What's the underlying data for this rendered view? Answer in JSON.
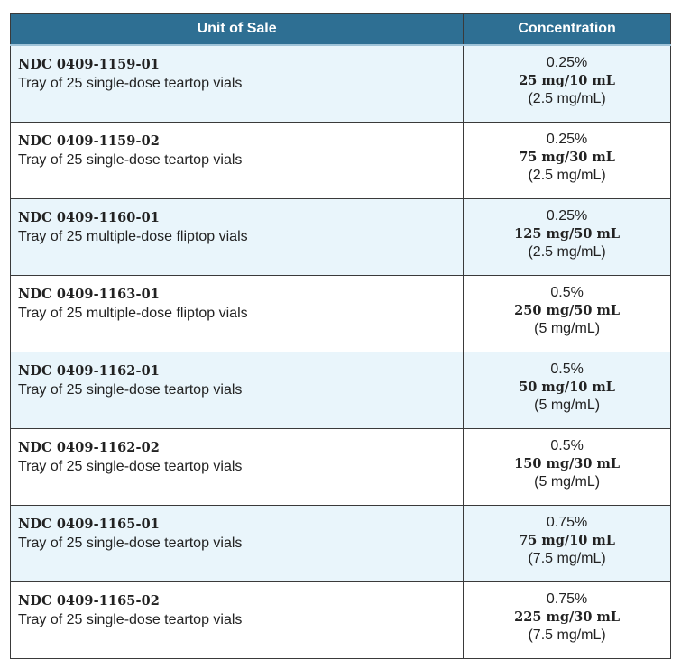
{
  "table": {
    "headers": {
      "unit_of_sale": "Unit of Sale",
      "concentration": "Concentration"
    },
    "rows": [
      {
        "ndc": "NDC 0409-1159-01",
        "description": "Tray of 25 single-dose teartop vials",
        "percent": "0.25%",
        "amount": "25 mg/10 mL",
        "per_ml": "(2.5 mg/mL)"
      },
      {
        "ndc": "NDC 0409-1159-02",
        "description": "Tray of 25 single-dose teartop vials",
        "percent": "0.25%",
        "amount": "75 mg/30 mL",
        "per_ml": "(2.5 mg/mL)"
      },
      {
        "ndc": "NDC 0409-1160-01",
        "description": "Tray of 25 multiple-dose fliptop vials",
        "percent": "0.25%",
        "amount": "125 mg/50 mL",
        "per_ml": "(2.5 mg/mL)"
      },
      {
        "ndc": "NDC 0409-1163-01",
        "description": "Tray of 25 multiple-dose fliptop vials",
        "percent": "0.5%",
        "amount": "250 mg/50 mL",
        "per_ml": "(5 mg/mL)"
      },
      {
        "ndc": "NDC 0409-1162-01",
        "description": "Tray of 25 single-dose teartop vials",
        "percent": "0.5%",
        "amount": "50 mg/10 mL",
        "per_ml": "(5 mg/mL)"
      },
      {
        "ndc": "NDC 0409-1162-02",
        "description": "Tray of 25 single-dose teartop vials",
        "percent": "0.5%",
        "amount": "150 mg/30 mL",
        "per_ml": "(5 mg/mL)"
      },
      {
        "ndc": "NDC 0409-1165-01",
        "description": "Tray of 25 single-dose teartop vials",
        "percent": "0.75%",
        "amount": "75 mg/10 mL",
        "per_ml": "(7.5 mg/mL)"
      },
      {
        "ndc": "NDC 0409-1165-02",
        "description": "Tray of 25 single-dose teartop vials",
        "percent": "0.75%",
        "amount": "225 mg/30 mL",
        "per_ml": "(7.5 mg/mL)"
      }
    ]
  },
  "colors": {
    "header_background": "#2e6f93",
    "odd_row_background": "#e9f5fb",
    "even_row_background": "#ffffff"
  }
}
